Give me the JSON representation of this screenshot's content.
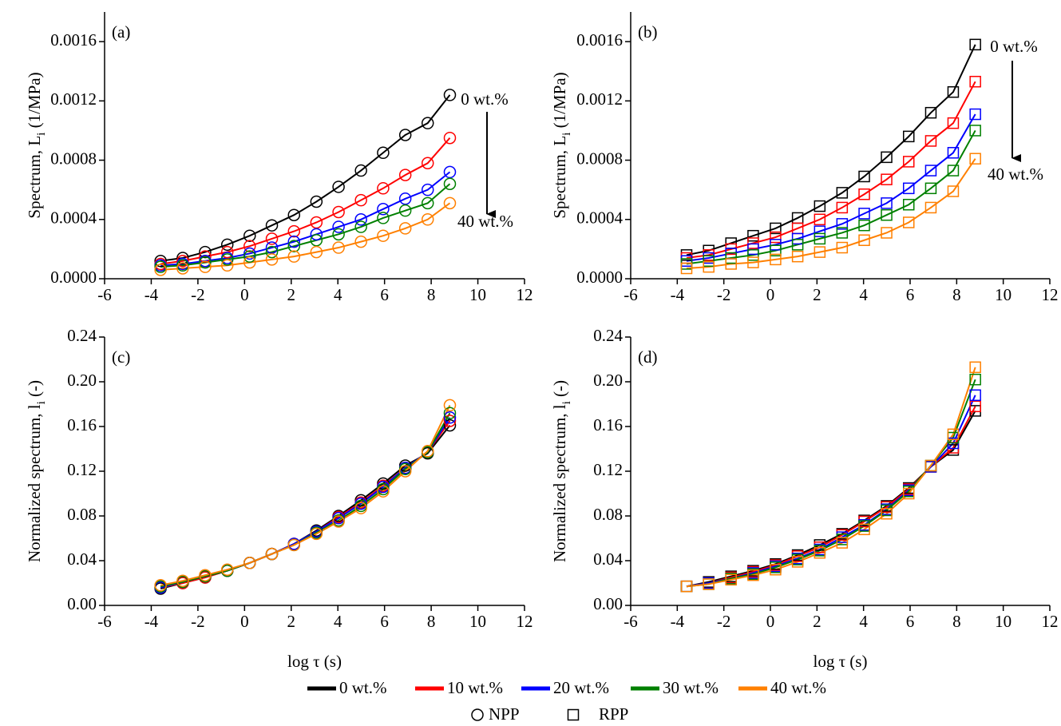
{
  "chart_data": [
    {
      "type": "line",
      "panel_label": "(a)",
      "y_label": [
        "Spectrum, L",
        "i",
        " (1/MPa)"
      ],
      "marker": "circle",
      "marker_label": "NPP",
      "annotations": [
        "0 wt.%",
        "40 wt.%"
      ],
      "xlim": [
        -6,
        12
      ],
      "xticks": [
        -6,
        -4,
        -2,
        0,
        2,
        4,
        6,
        8,
        10,
        12
      ],
      "ylim": [
        0,
        0.0018
      ],
      "yticks": [
        {
          "value": 0,
          "label": "0.0000"
        },
        0.0004,
        0.0008,
        0.0012,
        0.0016
      ],
      "x": [
        -3.6,
        -2.65,
        -1.69,
        -0.74,
        0.22,
        1.17,
        2.12,
        3.08,
        4.03,
        4.99,
        5.94,
        6.89,
        7.85,
        8.8
      ],
      "series": [
        {
          "name": "0 wt.%",
          "color": "#000000",
          "values": [
            0.00012,
            0.00014,
            0.00018,
            0.00023,
            0.00029,
            0.00036,
            0.00043,
            0.00052,
            0.00062,
            0.00073,
            0.00085,
            0.00097,
            0.00105,
            0.00124
          ]
        },
        {
          "name": "10 wt.%",
          "color": "#ff0000",
          "values": [
            0.0001,
            0.00012,
            0.00015,
            0.00018,
            0.00022,
            0.00027,
            0.00032,
            0.00038,
            0.00045,
            0.00053,
            0.00061,
            0.0007,
            0.00078,
            0.00095
          ]
        },
        {
          "name": "20 wt.%",
          "color": "#0000ff",
          "values": [
            9e-05,
            0.0001,
            0.00012,
            0.00014,
            0.00017,
            0.00021,
            0.00025,
            0.0003,
            0.00035,
            0.0004,
            0.00047,
            0.00054,
            0.0006,
            0.00072
          ]
        },
        {
          "name": "30 wt.%",
          "color": "#008000",
          "values": [
            8e-05,
            9e-05,
            0.00011,
            0.00013,
            0.00015,
            0.00018,
            0.00022,
            0.00026,
            0.0003,
            0.00035,
            0.00041,
            0.00046,
            0.00051,
            0.00064
          ]
        },
        {
          "name": "40 wt.%",
          "color": "#ff8000",
          "values": [
            6e-05,
            7e-05,
            8e-05,
            9e-05,
            0.00011,
            0.00013,
            0.00015,
            0.00018,
            0.00021,
            0.00025,
            0.00029,
            0.00034,
            0.0004,
            0.00051
          ]
        }
      ]
    },
    {
      "type": "line",
      "panel_label": "(b)",
      "y_label": [
        "Spectrum, L",
        "i",
        " (1/MPa)"
      ],
      "marker": "square",
      "marker_label": "RPP",
      "annotations": [
        "0 wt.%",
        "40 wt.%"
      ],
      "xlim": [
        -6,
        12
      ],
      "xticks": [
        -6,
        -4,
        -2,
        0,
        2,
        4,
        6,
        8,
        10,
        12
      ],
      "ylim": [
        0,
        0.0018
      ],
      "yticks": [
        {
          "value": 0,
          "label": "0.0000"
        },
        0.0004,
        0.0008,
        0.0012,
        0.0016
      ],
      "x": [
        -3.6,
        -2.65,
        -1.69,
        -0.74,
        0.22,
        1.17,
        2.12,
        3.08,
        4.03,
        4.99,
        5.94,
        6.89,
        7.85,
        8.8
      ],
      "series": [
        {
          "name": "0 wt.%",
          "color": "#000000",
          "values": [
            0.00016,
            0.00019,
            0.00024,
            0.00029,
            0.00034,
            0.00041,
            0.00049,
            0.00058,
            0.00069,
            0.00082,
            0.00096,
            0.00112,
            0.00126,
            0.00158
          ]
        },
        {
          "name": "10 wt.%",
          "color": "#ff0000",
          "values": [
            0.00014,
            0.00016,
            0.0002,
            0.00024,
            0.00028,
            0.00034,
            0.0004,
            0.00048,
            0.00057,
            0.00067,
            0.00079,
            0.00093,
            0.00105,
            0.00133
          ]
        },
        {
          "name": "20 wt.%",
          "color": "#0000ff",
          "values": [
            0.00012,
            0.00014,
            0.00017,
            0.0002,
            0.00023,
            0.00027,
            0.00032,
            0.00037,
            0.00044,
            0.00051,
            0.00061,
            0.00073,
            0.00085,
            0.00111
          ]
        },
        {
          "name": "30 wt.%",
          "color": "#008000",
          "values": [
            0.0001,
            0.00012,
            0.00014,
            0.00016,
            0.00019,
            0.00023,
            0.00027,
            0.00031,
            0.00036,
            0.00043,
            0.0005,
            0.00061,
            0.00073,
            0.001
          ]
        },
        {
          "name": "40 wt.%",
          "color": "#ff8000",
          "values": [
            7e-05,
            8e-05,
            0.0001,
            0.00011,
            0.00013,
            0.00015,
            0.00018,
            0.00021,
            0.00026,
            0.00031,
            0.00038,
            0.00048,
            0.00059,
            0.00081
          ]
        }
      ]
    },
    {
      "type": "line",
      "panel_label": "(c)",
      "y_label": [
        "Normalized spectrum, l",
        "i",
        " (-)"
      ],
      "x_label": "log τ (s)",
      "marker": "circle",
      "marker_label": "NPP",
      "xlim": [
        -6,
        12
      ],
      "xticks": [
        -6,
        -4,
        -2,
        0,
        2,
        4,
        6,
        8,
        10,
        12
      ],
      "ylim": [
        0,
        0.24
      ],
      "yticks": [
        {
          "value": 0,
          "label": "0.00"
        },
        0.04,
        0.08,
        0.12,
        0.16,
        {
          "value": 0.2,
          "label": "0.20"
        },
        0.24
      ],
      "x": [
        -3.6,
        -2.65,
        -1.69,
        -0.74,
        0.22,
        1.17,
        2.12,
        3.08,
        4.03,
        4.99,
        5.94,
        6.89,
        7.85,
        8.8
      ],
      "series": [
        {
          "name": "0 wt.%",
          "color": "#000000",
          "values": [
            0.015,
            0.02,
            0.025,
            0.031,
            0.038,
            0.046,
            0.055,
            0.067,
            0.08,
            0.094,
            0.109,
            0.125,
            0.136,
            0.161
          ]
        },
        {
          "name": "10 wt.%",
          "color": "#ff0000",
          "values": [
            0.016,
            0.02,
            0.025,
            0.031,
            0.038,
            0.046,
            0.055,
            0.066,
            0.079,
            0.092,
            0.107,
            0.123,
            0.137,
            0.165
          ]
        },
        {
          "name": "20 wt.%",
          "color": "#0000ff",
          "values": [
            0.016,
            0.021,
            0.026,
            0.031,
            0.038,
            0.046,
            0.055,
            0.066,
            0.078,
            0.091,
            0.106,
            0.123,
            0.137,
            0.168
          ]
        },
        {
          "name": "30 wt.%",
          "color": "#008000",
          "values": [
            0.017,
            0.021,
            0.026,
            0.031,
            0.038,
            0.046,
            0.054,
            0.065,
            0.076,
            0.089,
            0.104,
            0.122,
            0.137,
            0.172
          ]
        },
        {
          "name": "40 wt.%",
          "color": "#ff8000",
          "values": [
            0.018,
            0.022,
            0.027,
            0.032,
            0.038,
            0.046,
            0.054,
            0.064,
            0.075,
            0.087,
            0.102,
            0.12,
            0.138,
            0.179
          ]
        }
      ]
    },
    {
      "type": "line",
      "panel_label": "(d)",
      "y_label": [
        "Normalized spectrum, l",
        "i",
        " (-)"
      ],
      "x_label": "log τ (s)",
      "marker": "square",
      "marker_label": "RPP",
      "xlim": [
        -6,
        12
      ],
      "xticks": [
        -6,
        -4,
        -2,
        0,
        2,
        4,
        6,
        8,
        10,
        12
      ],
      "ylim": [
        0,
        0.24
      ],
      "yticks": [
        {
          "value": 0,
          "label": "0.00"
        },
        0.04,
        0.08,
        0.12,
        0.16,
        {
          "value": 0.2,
          "label": "0.20"
        },
        0.24
      ],
      "x": [
        -3.6,
        -2.65,
        -1.69,
        -0.74,
        0.22,
        1.17,
        2.12,
        3.08,
        4.03,
        4.99,
        5.94,
        6.89,
        7.85,
        8.8
      ],
      "series": [
        {
          "name": "0 wt.%",
          "color": "#000000",
          "values": [
            0.017,
            0.021,
            0.026,
            0.031,
            0.037,
            0.045,
            0.054,
            0.064,
            0.076,
            0.089,
            0.105,
            0.124,
            0.139,
            0.174
          ]
        },
        {
          "name": "10 wt.%",
          "color": "#ff0000",
          "values": [
            0.017,
            0.02,
            0.025,
            0.03,
            0.036,
            0.044,
            0.052,
            0.063,
            0.075,
            0.088,
            0.104,
            0.124,
            0.141,
            0.178
          ]
        },
        {
          "name": "20 wt.%",
          "color": "#0000ff",
          "values": [
            0.017,
            0.02,
            0.024,
            0.029,
            0.035,
            0.042,
            0.05,
            0.061,
            0.072,
            0.086,
            0.103,
            0.124,
            0.145,
            0.188
          ]
        },
        {
          "name": "30 wt.%",
          "color": "#008000",
          "values": [
            0.017,
            0.019,
            0.024,
            0.028,
            0.034,
            0.041,
            0.049,
            0.059,
            0.071,
            0.085,
            0.102,
            0.125,
            0.15,
            0.202
          ]
        },
        {
          "name": "40 wt.%",
          "color": "#ff8000",
          "values": [
            0.017,
            0.019,
            0.023,
            0.027,
            0.032,
            0.039,
            0.047,
            0.056,
            0.068,
            0.082,
            0.1,
            0.125,
            0.153,
            0.213
          ]
        }
      ]
    }
  ]
}
